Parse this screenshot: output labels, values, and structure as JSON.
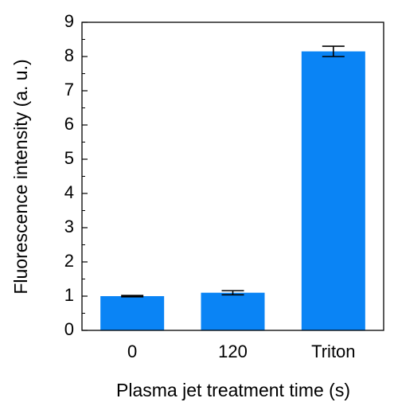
{
  "chart_data": {
    "type": "bar",
    "xlabel": "Plasma jet treatment time (s)",
    "ylabel": "Fluorescence intensity (a. u.)",
    "categories": [
      "0",
      "120",
      "Triton"
    ],
    "values": [
      1.0,
      1.1,
      8.15
    ],
    "errors": [
      0.02,
      0.06,
      0.15
    ],
    "color": "#0a84f5",
    "ylim": [
      0,
      9
    ],
    "yticks": [
      0,
      1,
      2,
      3,
      4,
      5,
      6,
      7,
      8,
      9
    ]
  }
}
